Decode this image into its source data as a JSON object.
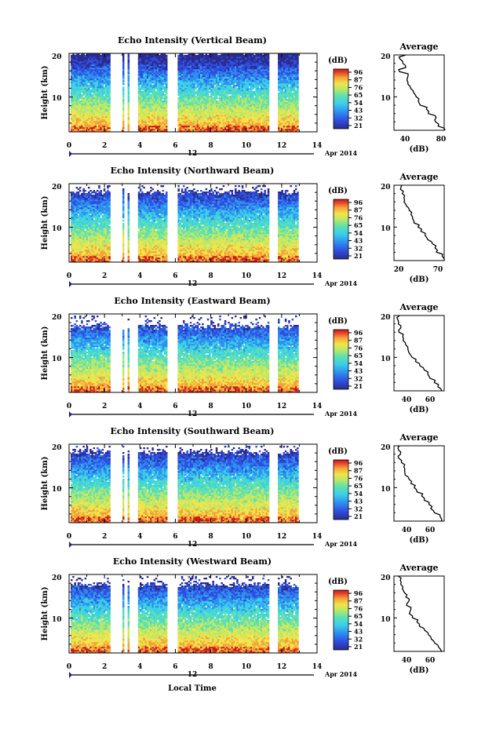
{
  "chart_data": [
    {
      "type": "heatmap",
      "title": "Echo Intensity (Vertical Beam)",
      "ylabel": "Height (km)",
      "xlim": [
        0,
        14
      ],
      "ylim": [
        2,
        20
      ],
      "x_ticks": [
        "0",
        "2",
        "4",
        "6",
        "8",
        "10",
        "12",
        "14"
      ],
      "y_ticks": [
        "20",
        "10"
      ],
      "colorbar": {
        "label": "(dB)",
        "ticks": [
          "96",
          "87",
          "76",
          "65",
          "54",
          "43",
          "32",
          "21"
        ]
      },
      "date_label": "12",
      "date_suffix": "Apr 2014",
      "data_gaps_hours": [
        [
          2.3,
          2.95
        ],
        [
          3.05,
          3.25
        ],
        [
          3.35,
          3.85
        ],
        [
          5.5,
          6.05
        ],
        [
          11.25,
          11.7
        ],
        [
          12.9,
          14.0
        ]
      ],
      "top_height_km": 20,
      "profile": {
        "title": "Average",
        "xlabel": "(dB)",
        "x_ticks": [
          "40",
          "80"
        ],
        "xlim": [
          30,
          80
        ],
        "y_ticks": [
          "20",
          "10"
        ],
        "heights_km": [
          2,
          3,
          4,
          5,
          6,
          7,
          8,
          9,
          10,
          11,
          12,
          13,
          14,
          15,
          16,
          17,
          18,
          19,
          20
        ],
        "values": [
          80,
          73,
          72,
          72,
          65,
          63,
          57,
          55,
          52,
          49,
          46,
          45,
          42,
          44,
          35,
          42,
          38,
          37,
          42
        ]
      }
    },
    {
      "type": "heatmap",
      "title": "Echo Intensity (Northward Beam)",
      "ylabel": "Height (km)",
      "xlim": [
        0,
        14
      ],
      "ylim": [
        2,
        20
      ],
      "x_ticks": [
        "0",
        "2",
        "4",
        "6",
        "8",
        "10",
        "12",
        "14"
      ],
      "y_ticks": [
        "20",
        "10"
      ],
      "colorbar": {
        "label": "(dB)",
        "ticks": [
          "96",
          "87",
          "76",
          "65",
          "54",
          "43",
          "32",
          "21"
        ]
      },
      "date_label": "12",
      "date_suffix": "Apr 2014",
      "data_gaps_hours": [
        [
          2.3,
          2.95
        ],
        [
          3.05,
          3.25
        ],
        [
          3.35,
          3.85
        ],
        [
          5.5,
          6.05
        ],
        [
          11.25,
          11.7
        ],
        [
          12.9,
          14.0
        ]
      ],
      "top_height_km": 18,
      "profile": {
        "title": "Average",
        "xlabel": "(dB)",
        "x_ticks": [
          "20",
          "70"
        ],
        "xlim": [
          15,
          75
        ],
        "y_ticks": [
          "20",
          "10"
        ],
        "heights_km": [
          2,
          3,
          4,
          5,
          6,
          7,
          8,
          9,
          10,
          11,
          12,
          13,
          14,
          15,
          16,
          17,
          18,
          19,
          20
        ],
        "values": [
          74,
          72,
          67,
          64,
          60,
          56,
          52,
          48,
          44,
          40,
          38,
          34,
          33,
          30,
          27,
          28,
          25,
          24,
          25
        ]
      }
    },
    {
      "type": "heatmap",
      "title": "Echo Intensity (Eastward Beam)",
      "ylabel": "Height (km)",
      "xlim": [
        0,
        14
      ],
      "ylim": [
        2,
        20
      ],
      "x_ticks": [
        "0",
        "2",
        "4",
        "6",
        "8",
        "10",
        "12",
        "14"
      ],
      "y_ticks": [
        "20",
        "10"
      ],
      "colorbar": {
        "label": "(dB)",
        "ticks": [
          "96",
          "87",
          "76",
          "65",
          "54",
          "43",
          "32",
          "21"
        ]
      },
      "date_label": "12",
      "date_suffix": "Apr 2014",
      "data_gaps_hours": [
        [
          2.3,
          2.95
        ],
        [
          3.05,
          3.25
        ],
        [
          3.35,
          3.85
        ],
        [
          5.5,
          6.05
        ],
        [
          11.25,
          11.7
        ],
        [
          12.9,
          14.0
        ]
      ],
      "top_height_km": 17,
      "profile": {
        "title": "Average",
        "xlabel": "(dB)",
        "x_ticks": [
          "40",
          "60"
        ],
        "xlim": [
          25,
          75
        ],
        "y_ticks": [
          "20",
          "10"
        ],
        "heights_km": [
          2,
          3,
          4,
          5,
          6,
          7,
          8,
          9,
          10,
          11,
          12,
          13,
          14,
          15,
          16,
          17,
          18,
          19,
          20
        ],
        "values": [
          72,
          68,
          65,
          62,
          58,
          54,
          50,
          47,
          44,
          41,
          38,
          36,
          34,
          33,
          31,
          32,
          30,
          29,
          30
        ]
      }
    },
    {
      "type": "heatmap",
      "title": "Echo Intensity (Southward Beam)",
      "ylabel": "Height (km)",
      "xlim": [
        0,
        14
      ],
      "ylim": [
        2,
        20
      ],
      "x_ticks": [
        "0",
        "2",
        "4",
        "6",
        "8",
        "10",
        "12",
        "14"
      ],
      "y_ticks": [
        "20",
        "10"
      ],
      "colorbar": {
        "label": "(dB)",
        "ticks": [
          "96",
          "87",
          "76",
          "65",
          "54",
          "43",
          "32",
          "21"
        ]
      },
      "date_label": "12",
      "date_suffix": "Apr 2014",
      "data_gaps_hours": [
        [
          2.3,
          2.95
        ],
        [
          3.05,
          3.25
        ],
        [
          3.35,
          3.85
        ],
        [
          5.5,
          6.05
        ],
        [
          11.25,
          11.7
        ],
        [
          12.9,
          14.0
        ]
      ],
      "top_height_km": 18,
      "profile": {
        "title": "Average",
        "xlabel": "(dB)",
        "x_ticks": [
          "40",
          "60"
        ],
        "xlim": [
          25,
          75
        ],
        "y_ticks": [
          "20",
          "10"
        ],
        "heights_km": [
          2,
          3,
          4,
          5,
          6,
          7,
          8,
          9,
          10,
          11,
          12,
          13,
          14,
          15,
          16,
          17,
          18,
          19,
          20
        ],
        "values": [
          72,
          70,
          66,
          61,
          60,
          55,
          52,
          48,
          45,
          42,
          39,
          37,
          35,
          34,
          32,
          30,
          31,
          29,
          30
        ]
      }
    },
    {
      "type": "heatmap",
      "title": "Echo Intensity (Westward Beam)",
      "ylabel": "Height (km)",
      "xlim": [
        0,
        14
      ],
      "ylim": [
        2,
        20
      ],
      "x_ticks": [
        "0",
        "2",
        "4",
        "6",
        "8",
        "10",
        "12",
        "14"
      ],
      "y_ticks": [
        "20",
        "10"
      ],
      "colorbar": {
        "label": "(dB)",
        "ticks": [
          "96",
          "87",
          "76",
          "65",
          "54",
          "43",
          "32",
          "21"
        ]
      },
      "date_label": "12",
      "date_suffix": "Apr 2014",
      "data_gaps_hours": [
        [
          2.3,
          2.95
        ],
        [
          3.05,
          3.25
        ],
        [
          3.35,
          3.85
        ],
        [
          5.5,
          6.05
        ],
        [
          11.25,
          11.7
        ],
        [
          12.9,
          14.0
        ]
      ],
      "top_height_km": 17.5,
      "profile": {
        "title": "Average",
        "xlabel": "(dB)",
        "x_ticks": [
          "40",
          "60"
        ],
        "xlim": [
          25,
          75
        ],
        "y_ticks": [
          "20",
          "10"
        ],
        "heights_km": [
          2,
          3,
          4,
          5,
          6,
          7,
          8,
          9,
          10,
          11,
          12,
          13,
          14,
          15,
          16,
          17,
          18,
          19,
          20
        ],
        "values": [
          73,
          70,
          65,
          62,
          59,
          55,
          50,
          47,
          44,
          41,
          42,
          37,
          40,
          36,
          35,
          33,
          32,
          31,
          30
        ]
      }
    }
  ],
  "footer": {
    "xlabel": "Local Time"
  },
  "colors": {
    "scale": [
      "#2b2b8f",
      "#2f4fe0",
      "#2f8ff0",
      "#3ad0e8",
      "#5fe0b0",
      "#b8e86a",
      "#f2e44a",
      "#f5a23a",
      "#e8452a",
      "#c41a1a"
    ]
  }
}
